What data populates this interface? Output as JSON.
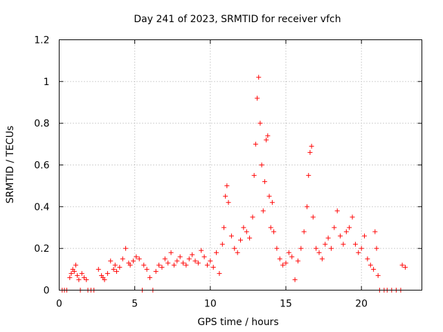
{
  "chart_data": {
    "type": "scatter",
    "title": "Day 241 of 2023, SRMTID for receiver vfch",
    "xlabel": "GPS time / hours",
    "ylabel": "SRMTID / TECUs",
    "xlim": [
      0,
      24
    ],
    "ylim": [
      0,
      1.2
    ],
    "xticks": [
      0,
      5,
      10,
      15,
      20
    ],
    "xtick_labels": [
      "0",
      "5",
      "10",
      "15",
      "20"
    ],
    "yticks": [
      0,
      0.2,
      0.4,
      0.6,
      0.8,
      1.0,
      1.2
    ],
    "ytick_labels": [
      "0",
      "0.2",
      "0.4",
      "0.6",
      "0.8",
      "1",
      "1.2"
    ],
    "grid": true,
    "marker": "+",
    "color": "#ff0000",
    "series": [
      {
        "name": "SRMTID",
        "x": [
          0.2,
          0.35,
          0.5,
          0.7,
          0.8,
          0.9,
          1.0,
          1.1,
          1.2,
          1.3,
          1.4,
          1.5,
          1.65,
          1.8,
          1.9,
          2.1,
          2.3,
          2.6,
          2.8,
          2.9,
          3.0,
          3.2,
          3.4,
          3.6,
          3.7,
          3.8,
          4.0,
          4.2,
          4.4,
          4.6,
          4.7,
          4.9,
          5.1,
          5.3,
          5.5,
          5.6,
          5.8,
          6.0,
          6.2,
          6.4,
          6.6,
          6.8,
          7.0,
          7.2,
          7.4,
          7.6,
          7.8,
          8.0,
          8.2,
          8.4,
          8.6,
          8.8,
          9.0,
          9.2,
          9.4,
          9.6,
          9.8,
          10.0,
          10.2,
          10.4,
          10.6,
          10.8,
          10.9,
          11.0,
          11.1,
          11.2,
          11.4,
          11.6,
          11.8,
          12.0,
          12.2,
          12.4,
          12.6,
          12.8,
          12.9,
          13.0,
          13.1,
          13.2,
          13.3,
          13.4,
          13.5,
          13.6,
          13.7,
          13.8,
          13.9,
          14.0,
          14.1,
          14.2,
          14.4,
          14.6,
          14.8,
          15.0,
          15.2,
          15.4,
          15.6,
          15.8,
          16.0,
          16.2,
          16.4,
          16.5,
          16.6,
          16.7,
          16.8,
          17.0,
          17.2,
          17.4,
          17.6,
          17.8,
          18.0,
          18.2,
          18.4,
          18.6,
          18.8,
          19.0,
          19.2,
          19.4,
          19.6,
          19.8,
          20.0,
          20.2,
          20.4,
          20.6,
          20.8,
          20.9,
          21.0,
          21.1,
          21.2,
          21.5,
          21.7,
          22.0,
          22.3,
          22.6,
          22.7,
          22.9
        ],
        "y": [
          0.0,
          0.0,
          0.0,
          0.06,
          0.08,
          0.1,
          0.09,
          0.12,
          0.07,
          0.05,
          0.0,
          0.08,
          0.06,
          0.05,
          0.0,
          0.0,
          0.0,
          0.1,
          0.07,
          0.06,
          0.05,
          0.08,
          0.14,
          0.1,
          0.12,
          0.09,
          0.11,
          0.15,
          0.2,
          0.13,
          0.12,
          0.14,
          0.16,
          0.15,
          0.0,
          0.12,
          0.1,
          0.06,
          0.0,
          0.09,
          0.12,
          0.11,
          0.15,
          0.13,
          0.18,
          0.12,
          0.14,
          0.16,
          0.13,
          0.12,
          0.15,
          0.17,
          0.14,
          0.13,
          0.19,
          0.16,
          0.12,
          0.14,
          0.11,
          0.18,
          0.08,
          0.22,
          0.3,
          0.45,
          0.5,
          0.42,
          0.26,
          0.2,
          0.18,
          0.24,
          0.3,
          0.28,
          0.25,
          0.35,
          0.55,
          0.7,
          0.92,
          1.02,
          0.8,
          0.6,
          0.38,
          0.52,
          0.72,
          0.74,
          0.45,
          0.3,
          0.42,
          0.28,
          0.2,
          0.15,
          0.12,
          0.13,
          0.18,
          0.16,
          0.05,
          0.14,
          0.2,
          0.28,
          0.4,
          0.55,
          0.66,
          0.69,
          0.35,
          0.2,
          0.18,
          0.15,
          0.22,
          0.25,
          0.2,
          0.3,
          0.38,
          0.26,
          0.22,
          0.28,
          0.3,
          0.35,
          0.22,
          0.18,
          0.2,
          0.26,
          0.15,
          0.12,
          0.1,
          0.28,
          0.2,
          0.07,
          0.0,
          0.0,
          0.0,
          0.0,
          0.0,
          0.0,
          0.12,
          0.11
        ]
      }
    ]
  }
}
